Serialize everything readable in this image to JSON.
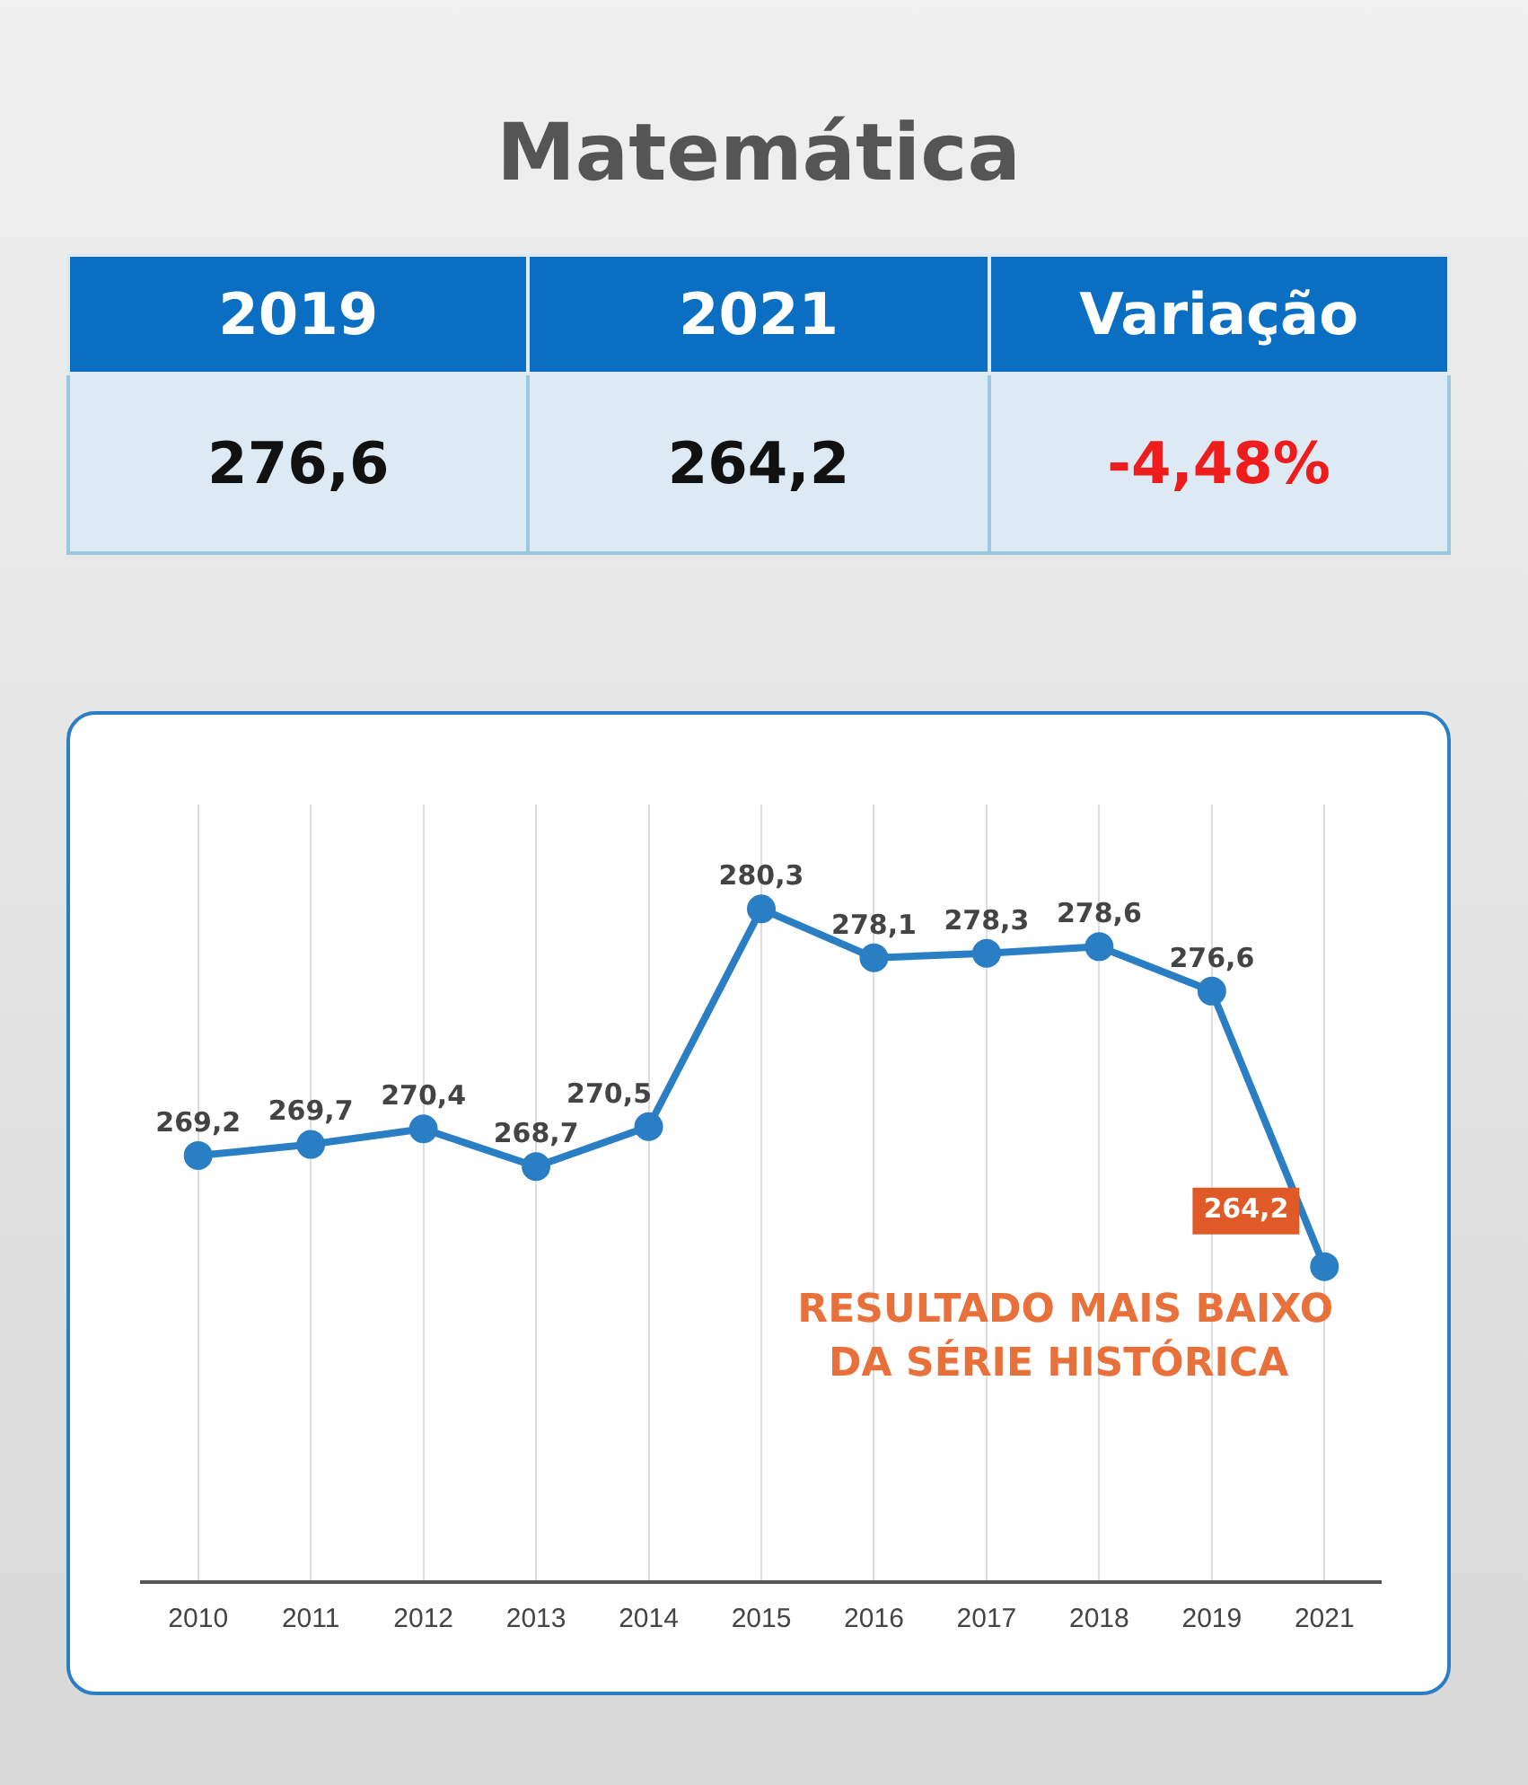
{
  "chart_data": [
    {
      "type": "other",
      "title": "Matemática",
      "annotations": [
        "2019",
        "2021",
        "Variação",
        "276,6",
        "264,2",
        "-4,48%"
      ],
      "colors": [
        "#ffffff",
        "#ffffff",
        "#ffffff",
        "#111111",
        "#111111",
        "#ee1c1c"
      ]
    },
    {
      "type": "line",
      "categories": [
        "2010",
        "2011",
        "2012",
        "2013",
        "2014",
        "2015",
        "2016",
        "2017",
        "2018",
        "2019",
        "2021"
      ],
      "series": [
        {
          "color": "#2a7fc4",
          "values": [
            269.2,
            269.7,
            270.4,
            268.7,
            270.5,
            280.3,
            278.1,
            278.3,
            278.6,
            276.6,
            264.2
          ],
          "value_labels": [
            "269,2",
            "269,7",
            "270,4",
            "268,7",
            "270,5",
            "280,3",
            "278,1",
            "278,3",
            "278,6",
            "276,6",
            "264,2"
          ]
        }
      ],
      "annotations": [
        {
          "text": "RESULTADO MAIS BAIXO DA SÉRIE HISTÓRICA",
          "x": "2021",
          "y": 264.2
        }
      ],
      "grid": "x",
      "marker": "circle",
      "legend": false
    }
  ]
}
